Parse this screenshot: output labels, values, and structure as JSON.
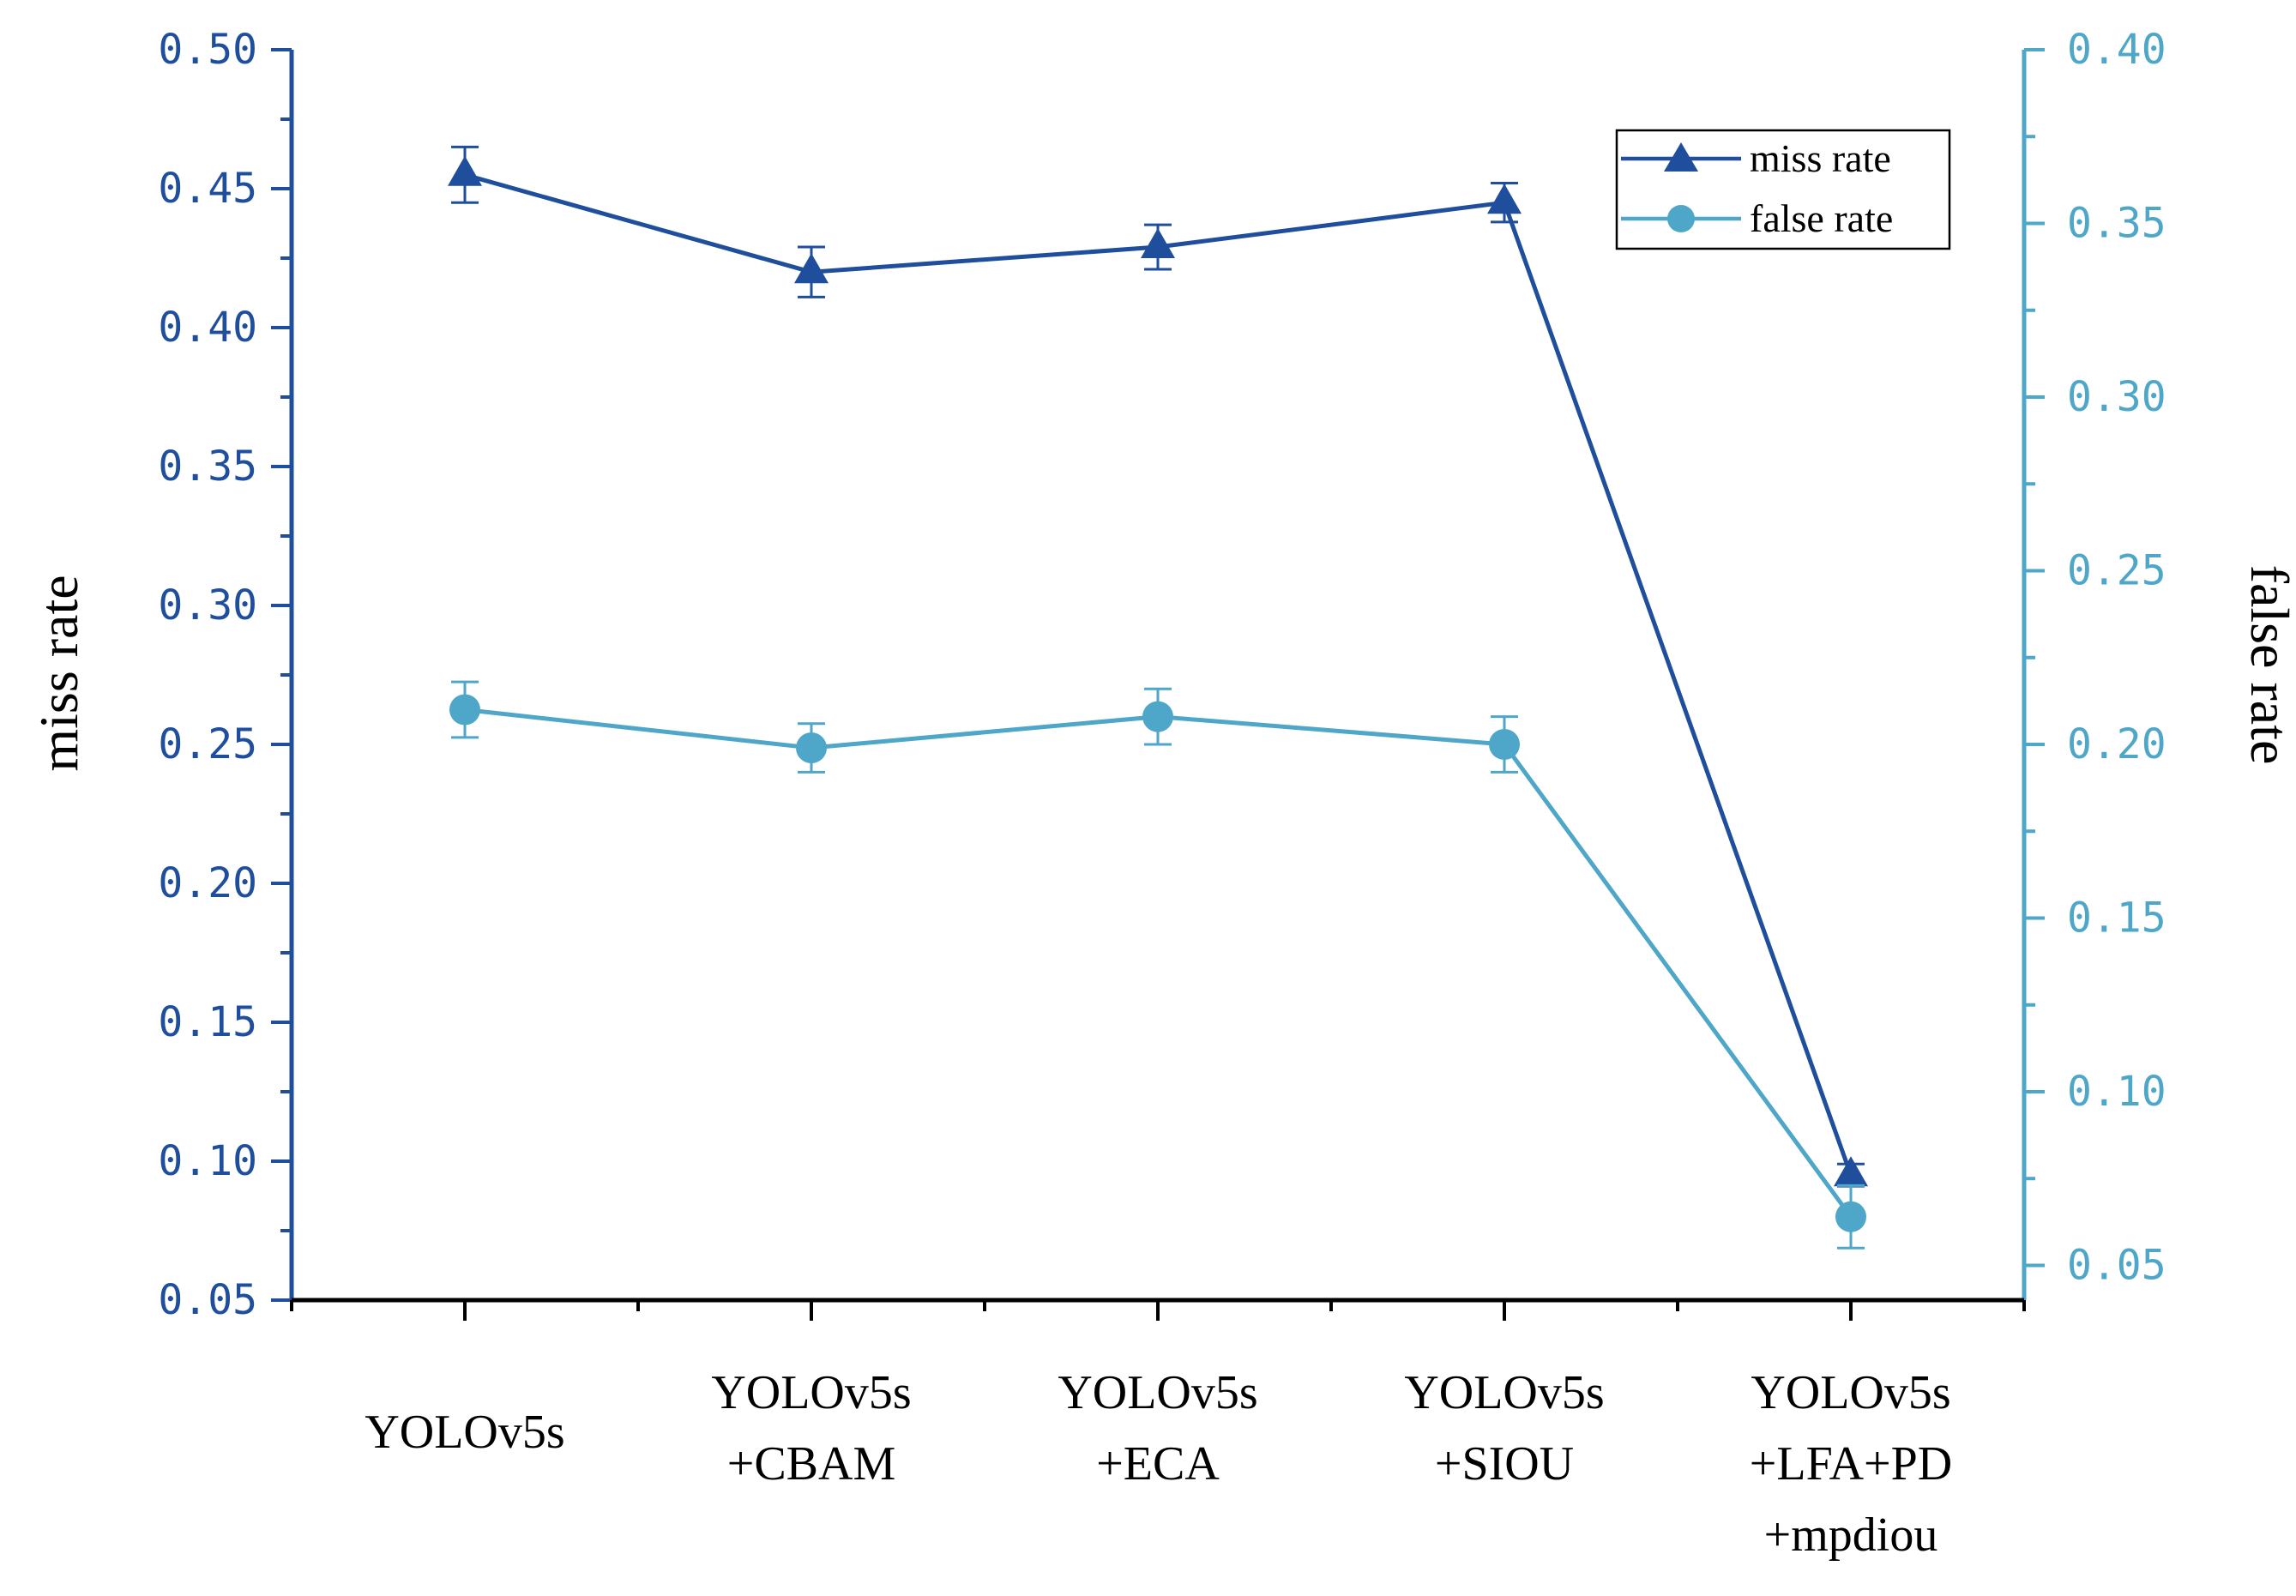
{
  "colors": {
    "miss": "#1f4e9c",
    "false": "#4ea6c9"
  },
  "chart_data": {
    "type": "line",
    "categories": [
      [
        "YOLOv5s"
      ],
      [
        "YOLOv5s",
        "+CBAM"
      ],
      [
        "YOLOv5s",
        "+ECA"
      ],
      [
        "YOLOv5s",
        "+SIOU"
      ],
      [
        "YOLOv5s",
        "+LFA+PD",
        "+mpdiou"
      ]
    ],
    "series": [
      {
        "name": "miss rate",
        "axis": "left",
        "marker": "triangle",
        "values": [
          0.455,
          0.42,
          0.429,
          0.445,
          0.095
        ],
        "errors": [
          0.01,
          0.009,
          0.008,
          0.007,
          0.004
        ]
      },
      {
        "name": "false rate",
        "axis": "right",
        "marker": "circle",
        "values": [
          0.21,
          0.199,
          0.208,
          0.2,
          0.064
        ],
        "errors": [
          0.008,
          0.007,
          0.008,
          0.008,
          0.009
        ]
      }
    ],
    "y_left": {
      "label": "miss rate",
      "ylim": [
        0.05,
        0.5
      ],
      "ticks": [
        "0.50",
        "0.45",
        "0.40",
        "0.35",
        "0.30",
        "0.25",
        "0.20",
        "0.15",
        "0.10",
        "0.05"
      ]
    },
    "y_right": {
      "label": "false rate",
      "ylim": [
        0.04,
        0.4
      ],
      "ticks": [
        "0.40",
        "0.35",
        "0.30",
        "0.25",
        "0.20",
        "0.15",
        "0.10",
        "0.05"
      ]
    },
    "legend": {
      "position": "top-right",
      "entries": [
        "miss rate",
        "false rate"
      ]
    },
    "grid": false
  }
}
